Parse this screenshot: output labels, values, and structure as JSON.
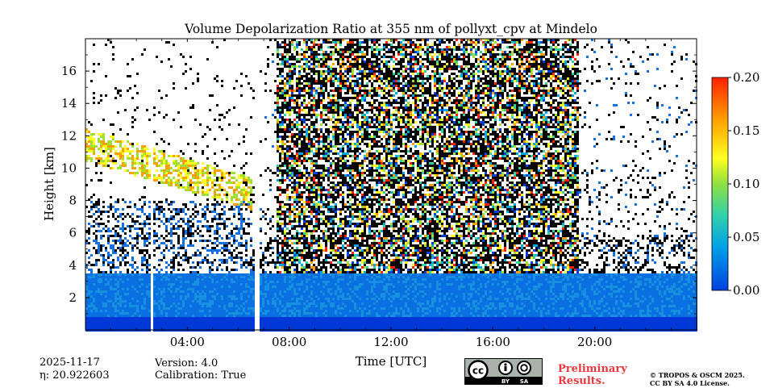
{
  "chart_data": {
    "type": "heatmap",
    "title": "Volume Depolarization Ratio at 355 nm of pollyxt_cpv at Mindelo",
    "xlabel": "Time [UTC]",
    "ylabel": "Height [km]",
    "xlim_hours": [
      0,
      24
    ],
    "ylim_km": [
      0,
      18
    ],
    "x_ticks": [
      {
        "hour": 4,
        "label": "04:00"
      },
      {
        "hour": 8,
        "label": "08:00"
      },
      {
        "hour": 12,
        "label": "12:00"
      },
      {
        "hour": 16,
        "label": "16:00"
      },
      {
        "hour": 20,
        "label": "20:00"
      }
    ],
    "y_ticks": [
      {
        "km": 2,
        "label": "2"
      },
      {
        "km": 4,
        "label": "4"
      },
      {
        "km": 6,
        "label": "6"
      },
      {
        "km": 8,
        "label": "8"
      },
      {
        "km": 10,
        "label": "10"
      },
      {
        "km": 12,
        "label": "12"
      },
      {
        "km": 14,
        "label": "14"
      },
      {
        "km": 16,
        "label": "16"
      }
    ],
    "colorbar": {
      "range": [
        0.0,
        0.2
      ],
      "ticks": [
        "0.00",
        "0.05",
        "0.10",
        "0.15",
        "0.20"
      ],
      "colors": [
        "#0040e0",
        "#00a8e0",
        "#30d0a0",
        "#a0e030",
        "#ffff20",
        "#ffa000",
        "#ff2000"
      ]
    },
    "data_gaps_hours": [
      [
        2.5,
        2.65
      ],
      [
        6.6,
        6.75
      ]
    ],
    "dense_noise_period_hours": [
      7.5,
      19.3
    ],
    "cirrus_layer": {
      "start_hour": 0,
      "end_hour": 6.5,
      "base_km_start": 10.5,
      "top_km_start": 12.5,
      "base_km_end": 7.5,
      "top_km_end": 9.5
    },
    "aerosol_layer_top_km": 3.5
  },
  "meta": {
    "date": "2025-11-17",
    "eta": "η: 20.922603",
    "version": "Version: 4.0",
    "calibration": "Calibration: True",
    "preliminary": [
      "Preliminary",
      "Results."
    ],
    "copyright": [
      "© TROPOS & OSCM 2025.",
      "CC BY SA 4.0 License."
    ],
    "cc_icons": [
      "cc",
      "by",
      "sa"
    ],
    "cc_labels": [
      "BY",
      "SA"
    ]
  }
}
